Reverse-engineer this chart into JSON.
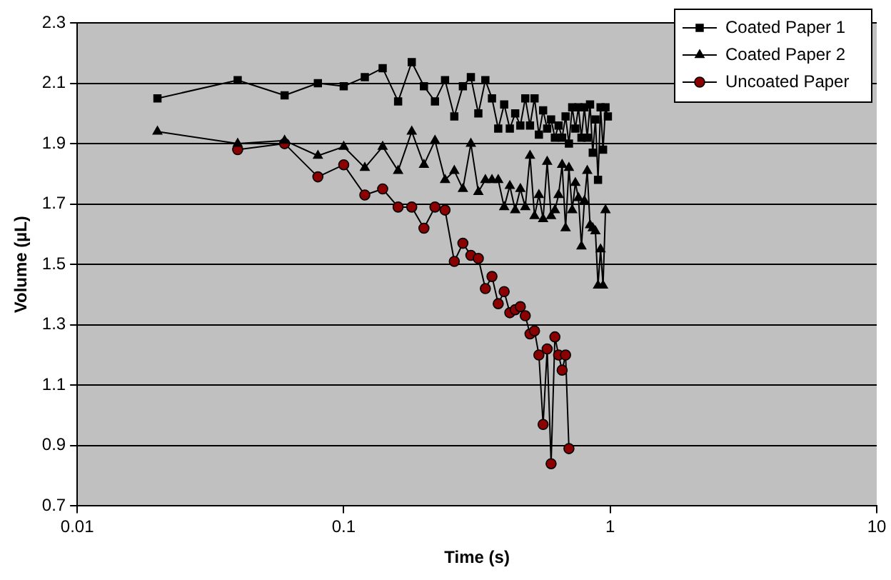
{
  "chart_data": {
    "type": "line",
    "xlabel": "Time (s)",
    "ylabel": "Volume (µL)",
    "log": "x",
    "xlim": [
      0.01,
      10
    ],
    "xticks": [
      0.01,
      0.1,
      1,
      10
    ],
    "ylim": [
      0.7,
      2.3
    ],
    "yticks": [
      {
        "value": 0.7,
        "label": "0.7"
      },
      {
        "value": 0.9,
        "label": "0.9"
      },
      {
        "value": 1.1,
        "label": "1.1"
      },
      {
        "value": 1.3,
        "label": "1.3"
      },
      {
        "value": 1.5,
        "label": "1.5"
      },
      {
        "value": 1.7,
        "label": "1.7"
      },
      {
        "value": 1.9,
        "label": "1.9"
      },
      {
        "value": 2.1,
        "label": "2.1"
      },
      {
        "value": 2.3,
        "label": "2.3"
      }
    ],
    "grid": "y",
    "legend": "top right",
    "series": [
      {
        "name": "Coated Paper 1",
        "color": "#000000",
        "marker": "square",
        "x": [
          0.02,
          0.04,
          0.06,
          0.08,
          0.1,
          0.12,
          0.14,
          0.16,
          0.18,
          0.2,
          0.22,
          0.24,
          0.26,
          0.28,
          0.3,
          0.32,
          0.34,
          0.36,
          0.38,
          0.4,
          0.42,
          0.44,
          0.46,
          0.48,
          0.5,
          0.52,
          0.54,
          0.56,
          0.58,
          0.6,
          0.62,
          0.64,
          0.66,
          0.68,
          0.7,
          0.72,
          0.74,
          0.76,
          0.78,
          0.8,
          0.82,
          0.84,
          0.86,
          0.88,
          0.9,
          0.92,
          0.94,
          0.96,
          0.98
        ],
        "values": [
          2.05,
          2.11,
          2.06,
          2.1,
          2.09,
          2.12,
          2.15,
          2.04,
          2.17,
          2.09,
          2.04,
          2.11,
          1.99,
          2.09,
          2.12,
          2.0,
          2.11,
          2.05,
          1.95,
          2.03,
          1.95,
          2.0,
          1.96,
          2.05,
          1.96,
          2.05,
          1.93,
          2.01,
          1.95,
          1.98,
          1.92,
          1.96,
          1.92,
          1.99,
          1.9,
          2.02,
          1.95,
          2.02,
          1.92,
          2.02,
          1.92,
          2.03,
          1.87,
          1.98,
          1.78,
          2.02,
          1.88,
          2.02,
          1.99
        ]
      },
      {
        "name": "Coated Paper 2",
        "color": "#000000",
        "marker": "triangle",
        "x": [
          0.02,
          0.04,
          0.06,
          0.08,
          0.1,
          0.12,
          0.14,
          0.16,
          0.18,
          0.2,
          0.22,
          0.24,
          0.26,
          0.28,
          0.3,
          0.32,
          0.34,
          0.36,
          0.38,
          0.4,
          0.42,
          0.44,
          0.46,
          0.48,
          0.5,
          0.52,
          0.54,
          0.56,
          0.58,
          0.6,
          0.62,
          0.64,
          0.66,
          0.68,
          0.7,
          0.72,
          0.74,
          0.76,
          0.78,
          0.8,
          0.82,
          0.84,
          0.86,
          0.88,
          0.9,
          0.92,
          0.94,
          0.96
        ],
        "values": [
          1.94,
          1.9,
          1.91,
          1.86,
          1.89,
          1.82,
          1.89,
          1.81,
          1.94,
          1.83,
          1.91,
          1.78,
          1.81,
          1.75,
          1.9,
          1.74,
          1.78,
          1.78,
          1.78,
          1.69,
          1.76,
          1.68,
          1.75,
          1.69,
          1.86,
          1.66,
          1.73,
          1.65,
          1.84,
          1.66,
          1.68,
          1.73,
          1.83,
          1.62,
          1.82,
          1.68,
          1.77,
          1.72,
          1.56,
          1.71,
          1.81,
          1.63,
          1.62,
          1.61,
          1.43,
          1.55,
          1.43,
          1.68
        ]
      },
      {
        "name": "Uncoated Paper",
        "color": "#8b0000",
        "marker": "circle",
        "x": [
          0.04,
          0.06,
          0.08,
          0.1,
          0.12,
          0.14,
          0.16,
          0.18,
          0.2,
          0.22,
          0.24,
          0.26,
          0.28,
          0.3,
          0.32,
          0.34,
          0.36,
          0.38,
          0.4,
          0.42,
          0.44,
          0.46,
          0.48,
          0.5,
          0.52,
          0.54,
          0.56,
          0.58,
          0.6,
          0.62,
          0.64,
          0.66,
          0.68,
          0.7
        ],
        "values": [
          1.88,
          1.9,
          1.79,
          1.83,
          1.73,
          1.75,
          1.69,
          1.69,
          1.62,
          1.69,
          1.68,
          1.51,
          1.57,
          1.53,
          1.52,
          1.42,
          1.46,
          1.37,
          1.41,
          1.34,
          1.35,
          1.36,
          1.33,
          1.27,
          1.28,
          1.2,
          0.97,
          1.22,
          0.84,
          1.26,
          1.2,
          1.15,
          1.2,
          0.89
        ]
      }
    ]
  }
}
